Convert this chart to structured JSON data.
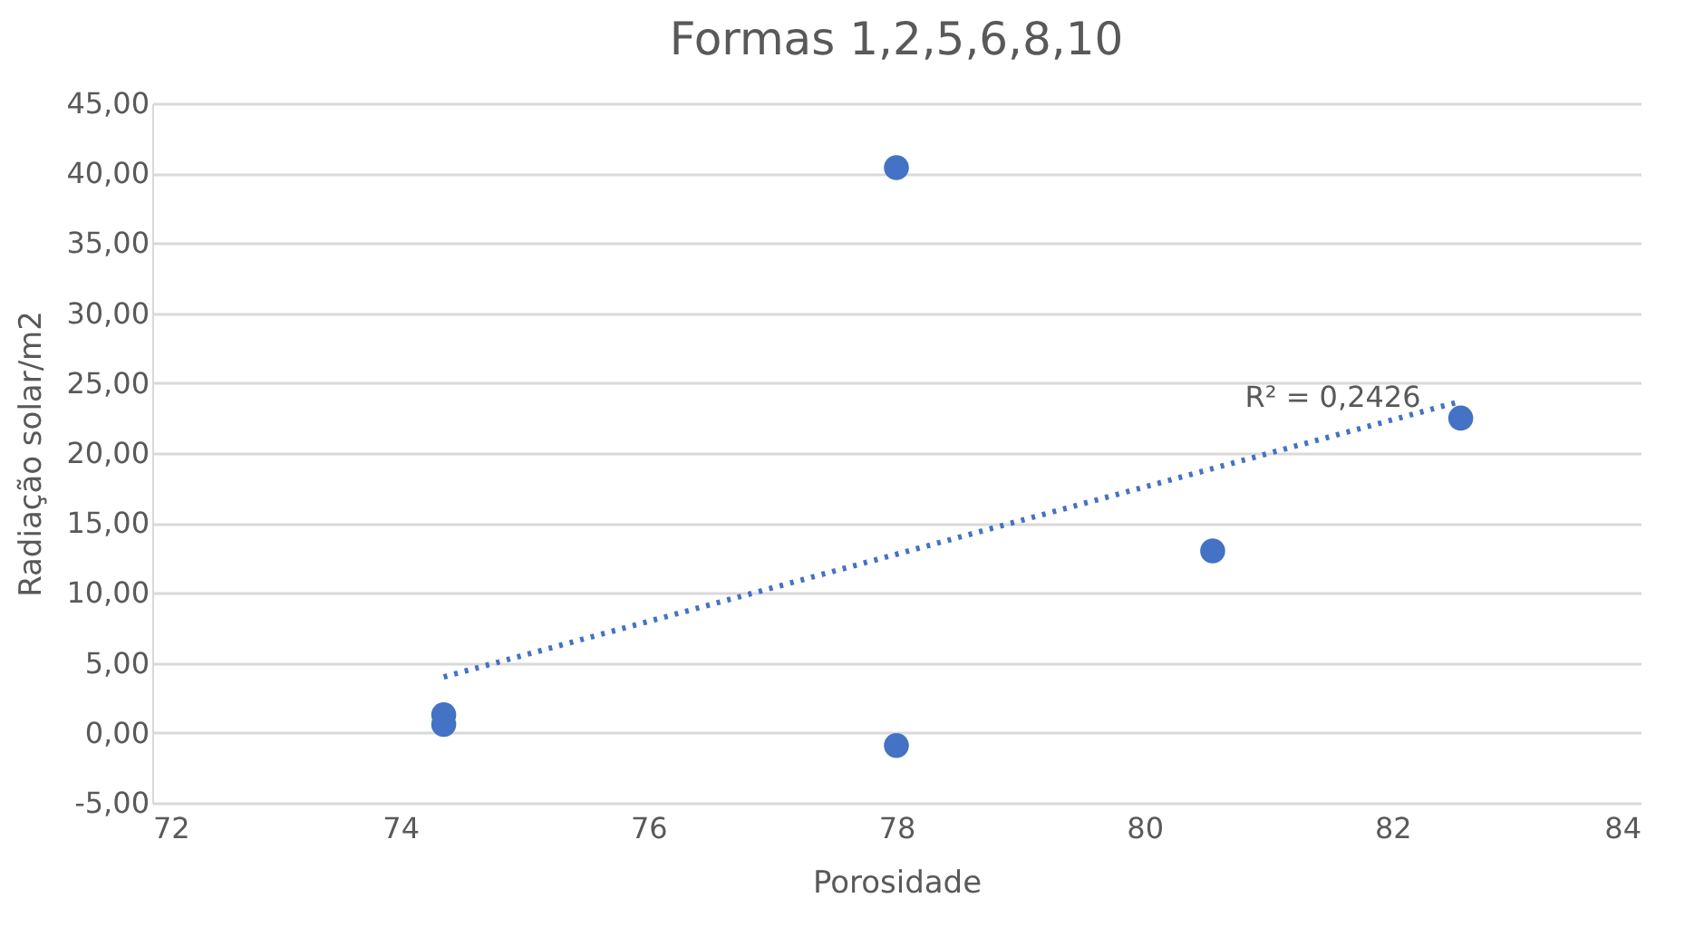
{
  "chart_data": {
    "type": "scatter",
    "title": "Formas 1,2,5,6,8,10",
    "xlabel": "Porosidade",
    "ylabel": "Radiação solar/m2",
    "xlim": [
      72,
      84
    ],
    "xticks": [
      72,
      74,
      76,
      78,
      80,
      82,
      84
    ],
    "ylim": [
      -5,
      45
    ],
    "yticks": [
      {
        "value": -5,
        "label": "-5,00"
      },
      {
        "value": 0,
        "label": "0,00"
      },
      {
        "value": 5,
        "label": "5,00"
      },
      {
        "value": 10,
        "label": "10,00"
      },
      {
        "value": 15,
        "label": "15,00"
      },
      {
        "value": 20,
        "label": "20,00"
      },
      {
        "value": 25,
        "label": "25,00"
      },
      {
        "value": 30,
        "label": "30,00"
      },
      {
        "value": 35,
        "label": "35,00"
      },
      {
        "value": 40,
        "label": "40,00"
      },
      {
        "value": 45,
        "label": "45,00"
      }
    ],
    "grid": "y",
    "series": [
      {
        "color": "#4472c4",
        "marker": "circle",
        "x": [
          74.35,
          74.35,
          78,
          78,
          80.55,
          82.55
        ],
        "values": [
          1.3,
          0.6,
          40.4,
          -0.9,
          13.0,
          22.5
        ]
      },
      {
        "type": "line",
        "color": "#4472c4",
        "marker": "none",
        "line_style": "dotted",
        "x": [
          74.35,
          82.55
        ],
        "values": [
          4.0,
          23.7
        ]
      }
    ],
    "annotations": [
      "R² = 0,2426"
    ]
  }
}
